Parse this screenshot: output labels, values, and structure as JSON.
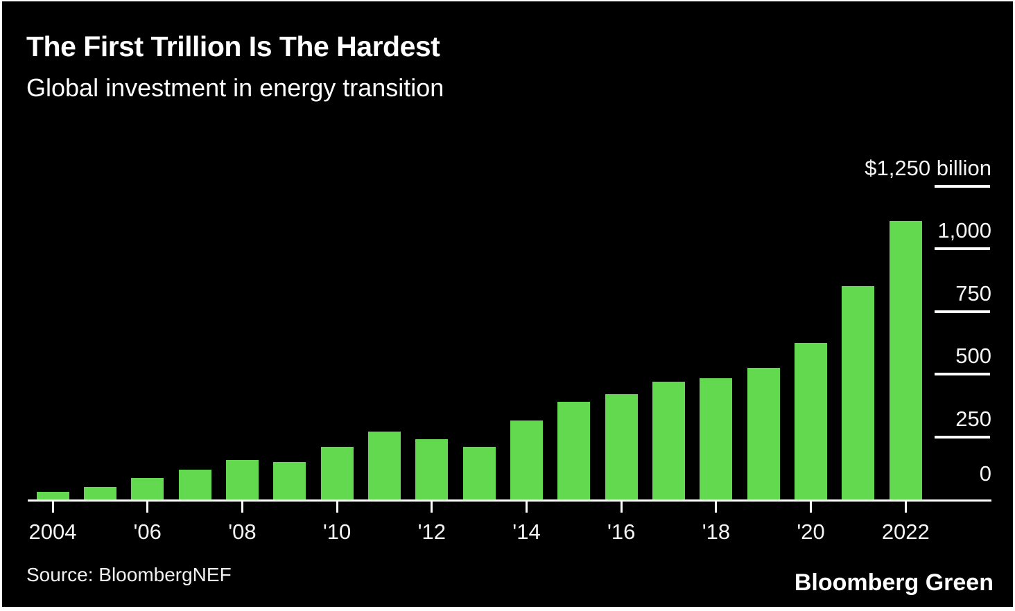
{
  "colors": {
    "background": "#000000",
    "bar_green": "#62d94e",
    "text": "#ffffff"
  },
  "chart_data": {
    "type": "bar",
    "title": "The First Trillion Is The Hardest",
    "subtitle": "Global investment in energy transition",
    "unit": "$ billion",
    "categories": [
      2004,
      2005,
      2006,
      2007,
      2008,
      2009,
      2010,
      2011,
      2012,
      2013,
      2014,
      2015,
      2016,
      2017,
      2018,
      2019,
      2020,
      2021,
      2022
    ],
    "values": [
      30,
      50,
      85,
      120,
      157,
      150,
      210,
      270,
      240,
      210,
      315,
      390,
      420,
      470,
      483,
      525,
      625,
      850,
      1110
    ],
    "xlabel": "",
    "ylabel": "$ billion",
    "ylim": [
      0,
      1250
    ],
    "grid": false,
    "y_axis_position": "right",
    "x_ticks": [
      {
        "year": 2004,
        "label": "2004"
      },
      {
        "year": 2006,
        "label": "'06"
      },
      {
        "year": 2008,
        "label": "'08"
      },
      {
        "year": 2010,
        "label": "'10"
      },
      {
        "year": 2012,
        "label": "'12"
      },
      {
        "year": 2014,
        "label": "'14"
      },
      {
        "year": 2016,
        "label": "'16"
      },
      {
        "year": 2018,
        "label": "'18"
      },
      {
        "year": 2020,
        "label": "'20"
      },
      {
        "year": 2022,
        "label": "2022"
      }
    ],
    "y_ticks": [
      {
        "value": 1250,
        "label": "$1,250 billion",
        "line": true
      },
      {
        "value": 1000,
        "label": "1,000",
        "line": true
      },
      {
        "value": 750,
        "label": "750",
        "line": true
      },
      {
        "value": 500,
        "label": "500",
        "line": true
      },
      {
        "value": 250,
        "label": "250",
        "line": true
      },
      {
        "value": 0,
        "label": "0",
        "line": false
      }
    ],
    "source": "Source: BloombergNEF",
    "brand": "Bloomberg Green"
  }
}
